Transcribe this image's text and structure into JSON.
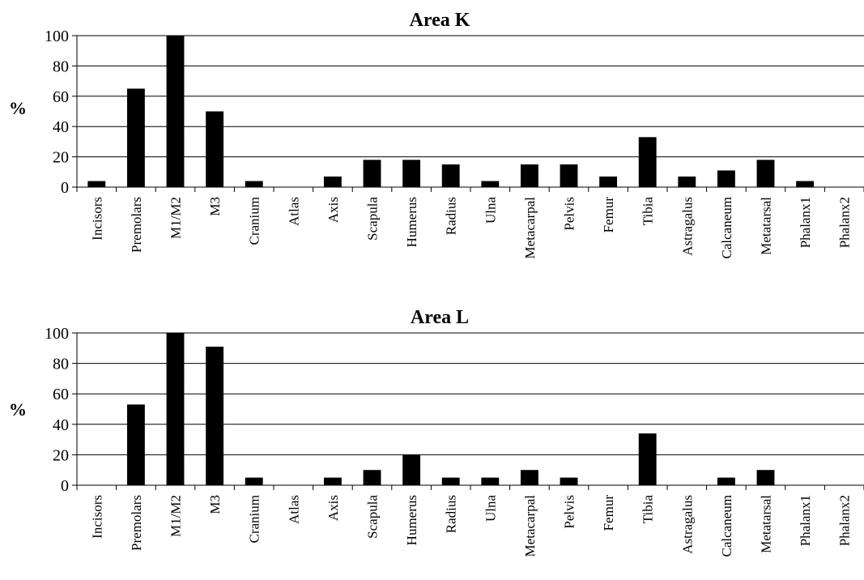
{
  "chart_data": [
    {
      "type": "bar",
      "title": "Area K",
      "ylabel": "%",
      "xlabel": "",
      "ylim": [
        0,
        100
      ],
      "yticks": [
        0,
        20,
        40,
        60,
        80,
        100
      ],
      "grid": true,
      "bar_color": "#000000",
      "categories": [
        "Incisors",
        "Premolars",
        "M1/M2",
        "M3",
        "Cranium",
        "Atlas",
        "Axis",
        "Scapula",
        "Humerus",
        "Radius",
        "Ulna",
        "Metacarpal",
        "Pelvis",
        "Femur",
        "Tibia",
        "Astragalus",
        "Calcaneum",
        "Metatarsal",
        "Phalanx1",
        "Phalanx2"
      ],
      "values": [
        4,
        65,
        100,
        50,
        4,
        0,
        7,
        18,
        18,
        15,
        4,
        15,
        15,
        7,
        33,
        7,
        11,
        18,
        4,
        0
      ]
    },
    {
      "type": "bar",
      "title": "Area L",
      "ylabel": "%",
      "xlabel": "",
      "ylim": [
        0,
        100
      ],
      "yticks": [
        0,
        20,
        40,
        60,
        80,
        100
      ],
      "grid": true,
      "bar_color": "#000000",
      "categories": [
        "Incisors",
        "Premolars",
        "M1/M2",
        "M3",
        "Cranium",
        "Atlas",
        "Axis",
        "Scapula",
        "Humerus",
        "Radius",
        "Ulna",
        "Metacarpal",
        "Pelvis",
        "Femur",
        "Tibia",
        "Astragalus",
        "Calcaneum",
        "Metatarsal",
        "Phalanx1",
        "Phalanx2"
      ],
      "values": [
        0,
        53,
        100,
        91,
        5,
        0,
        5,
        10,
        20,
        5,
        5,
        10,
        5,
        0,
        34,
        0,
        5,
        10,
        0,
        0
      ]
    }
  ]
}
